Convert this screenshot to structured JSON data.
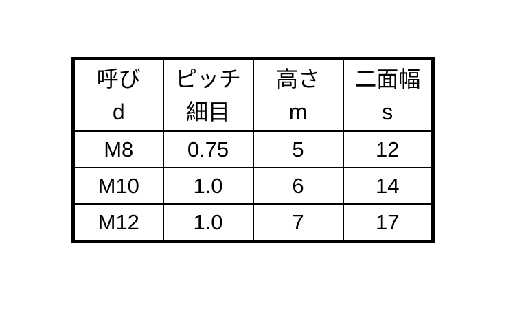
{
  "chart_data": {
    "type": "table",
    "headers": [
      [
        "呼び",
        "d"
      ],
      [
        "ピッチ",
        "細目"
      ],
      [
        "高さ",
        "m"
      ],
      [
        "二面幅",
        "s"
      ]
    ],
    "rows": [
      [
        "M8",
        "0.75",
        "5",
        "12"
      ],
      [
        "M10",
        "1.0",
        "6",
        "14"
      ],
      [
        "M12",
        "1.0",
        "7",
        "17"
      ]
    ]
  },
  "colors": {
    "background": "#ffffff",
    "border": "#000000",
    "text": "#000000"
  }
}
